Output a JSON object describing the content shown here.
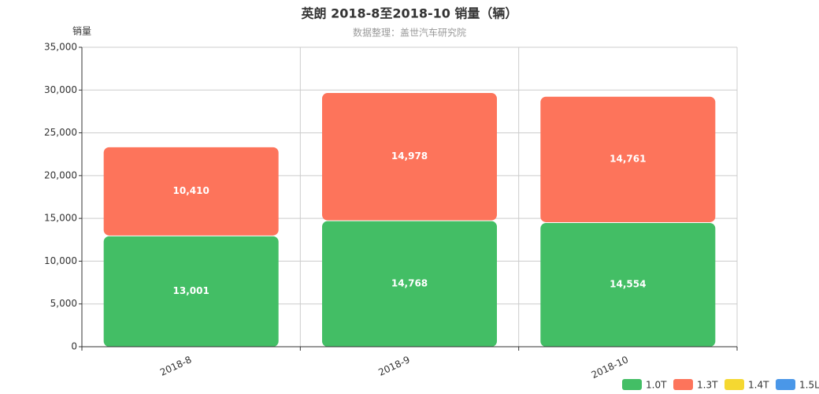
{
  "chart_data": {
    "type": "stacked-bar",
    "title": "英朗 2018-8至2018-10 销量（辆）",
    "subtitle": "数据整理：盖世汽车研究院",
    "y_label": "销量",
    "categories": [
      "2018-8",
      "2018-9",
      "2018-10"
    ],
    "series": [
      {
        "name": "1.0T",
        "color": "#43be65",
        "values": [
          13001,
          14768,
          14554
        ],
        "value_labels": [
          "13,001",
          "14,768",
          "14,554"
        ]
      },
      {
        "name": "1.3T",
        "color": "#fd745b",
        "values": [
          10410,
          14978,
          14761
        ],
        "value_labels": [
          "10,410",
          "14,978",
          "14,761"
        ]
      },
      {
        "name": "1.4T",
        "color": "#f5d831",
        "values": [
          null,
          null,
          null
        ]
      },
      {
        "name": "1.5L",
        "color": "#4a97e8",
        "values": [
          null,
          null,
          null
        ]
      }
    ],
    "ylim": [
      0,
      35000
    ],
    "yticks": [
      0,
      {
        "value": 5000,
        "label": "5,000"
      },
      {
        "value": 10000,
        "label": "10,000"
      },
      {
        "value": 15000,
        "label": "15,000"
      },
      {
        "value": 20000,
        "label": "20,000"
      },
      {
        "value": 25000,
        "label": "25,000"
      },
      {
        "value": 30000,
        "label": "30,000"
      },
      {
        "value": 35000,
        "label": "35,000"
      }
    ],
    "grid": true
  }
}
